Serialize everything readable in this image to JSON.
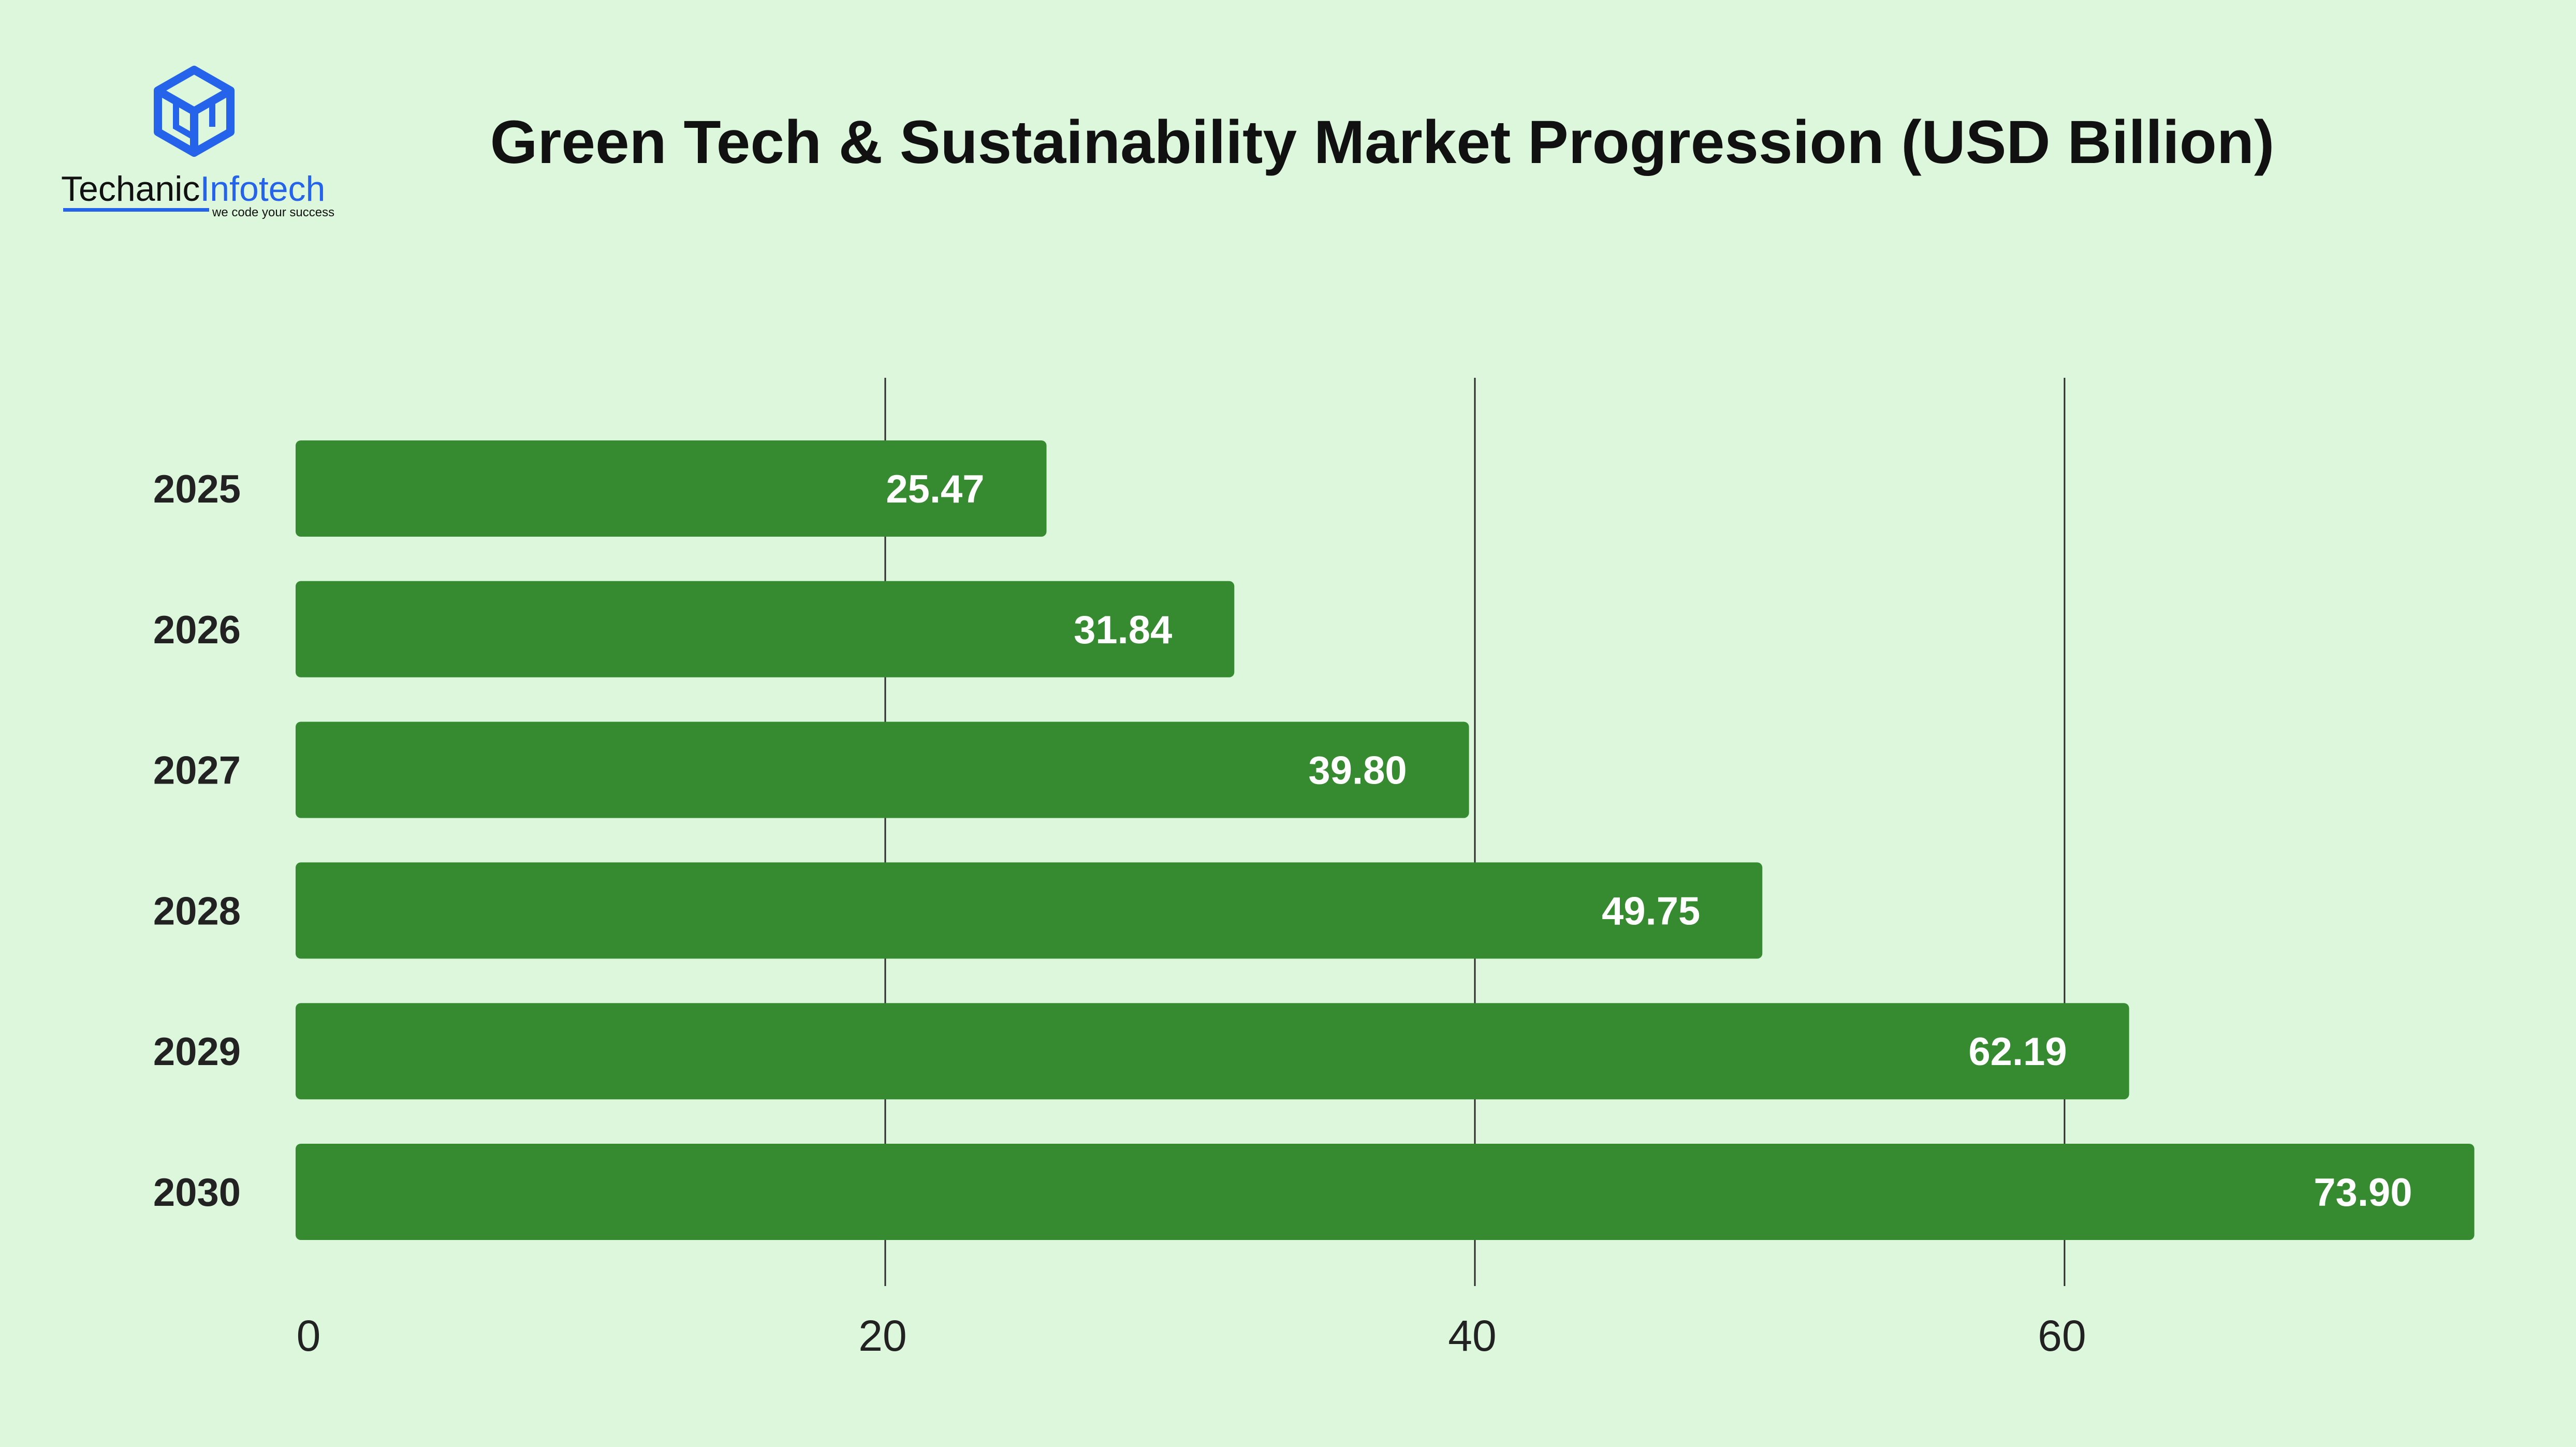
{
  "brand": {
    "name_part1": "Techanic",
    "name_part2": "Infotech",
    "tagline": "we code your success",
    "colors": {
      "primary": "#2563eb",
      "dark": "#111111"
    }
  },
  "chart_data": {
    "type": "bar",
    "orientation": "horizontal",
    "title": "Green Tech & Sustainability Market Progression (USD Billion)",
    "xlabel": "",
    "ylabel": "",
    "categories": [
      "2025",
      "2026",
      "2027",
      "2028",
      "2029",
      "2030"
    ],
    "values": [
      25.47,
      31.84,
      39.8,
      49.75,
      62.19,
      73.9
    ],
    "value_labels": [
      "25.47",
      "31.84",
      "39.80",
      "49.75",
      "62.19",
      "73.90"
    ],
    "xlim": [
      0,
      80
    ],
    "xticks": [
      0,
      20,
      40,
      60
    ],
    "grid": true,
    "bar_color": "#368b31",
    "background_color": "#dcf7dc"
  }
}
